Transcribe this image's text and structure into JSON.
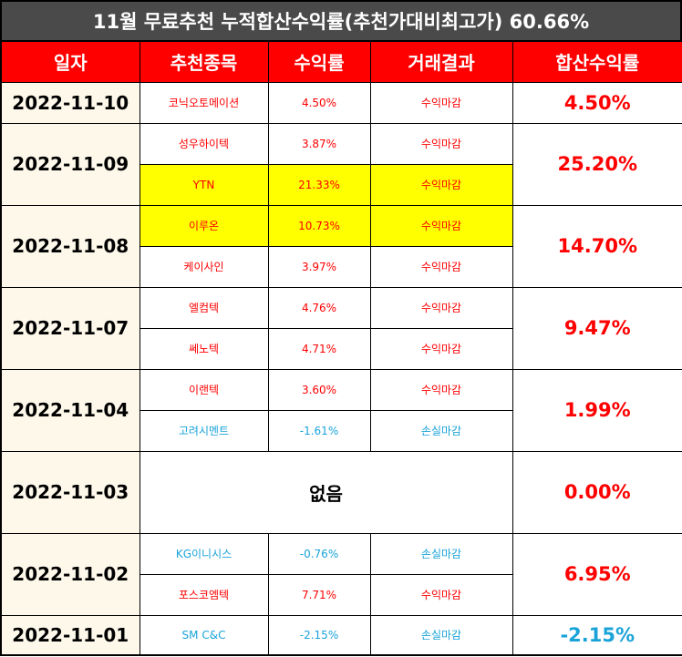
{
  "title": "11월 무료추천 누적합산수익률(추천가대비최고가) 60.66%",
  "headers": [
    "일자",
    "추천종목",
    "수익률",
    "거래결과",
    "합산수익률"
  ],
  "groups": [
    {
      "date": "2022-11-10",
      "total": "4.50%",
      "total_color": "#ff0000",
      "rows": [
        {
          "stock": "코닉오토메이션",
          "rate": "4.50%",
          "result": "수익마감",
          "color": "#ff0000",
          "highlight": false
        }
      ]
    },
    {
      "date": "2022-11-09",
      "total": "25.20%",
      "total_color": "#ff0000",
      "rows": [
        {
          "stock": "성우하이텍",
          "rate": "3.87%",
          "result": "수익마감",
          "color": "#ff0000",
          "highlight": false
        },
        {
          "stock": "YTN",
          "rate": "21.33%",
          "result": "수익마감",
          "color": "#ff0000",
          "highlight": true
        }
      ]
    },
    {
      "date": "2022-11-08",
      "total": "14.70%",
      "total_color": "#ff0000",
      "rows": [
        {
          "stock": "이루온",
          "rate": "10.73%",
          "result": "수익마감",
          "color": "#ff0000",
          "highlight": true
        },
        {
          "stock": "케이사인",
          "rate": "3.97%",
          "result": "수익마감",
          "color": "#ff0000",
          "highlight": false
        }
      ]
    },
    {
      "date": "2022-11-07",
      "total": "9.47%",
      "total_color": "#ff0000",
      "rows": [
        {
          "stock": "엘컴텍",
          "rate": "4.76%",
          "result": "수익마감",
          "color": "#ff0000",
          "highlight": false
        },
        {
          "stock": "쎄노텍",
          "rate": "4.71%",
          "result": "수익마감",
          "color": "#ff0000",
          "highlight": false
        }
      ]
    },
    {
      "date": "2022-11-04",
      "total": "1.99%",
      "total_color": "#ff0000",
      "rows": [
        {
          "stock": "이랜텍",
          "rate": "3.60%",
          "result": "수익마감",
          "color": "#ff0000",
          "highlight": false
        },
        {
          "stock": "고려시멘트",
          "rate": "-1.61%",
          "result": "손실마감",
          "color": "#1aa3d9",
          "highlight": false
        }
      ]
    },
    {
      "date": "2022-11-03",
      "total": "0.00%",
      "total_color": "#ff0000",
      "none_label": "없음",
      "rows": []
    },
    {
      "date": "2022-11-02",
      "total": "6.95%",
      "total_color": "#ff0000",
      "rows": [
        {
          "stock": "KG이니시스",
          "rate": "-0.76%",
          "result": "손실마감",
          "color": "#1aa3d9",
          "highlight": false
        },
        {
          "stock": "포스코엠텍",
          "rate": "7.71%",
          "result": "수익마감",
          "color": "#ff0000",
          "highlight": false
        }
      ]
    },
    {
      "date": "2022-11-01",
      "total": "-2.15%",
      "total_color": "#1aa3d9",
      "rows": [
        {
          "stock": "SM C&C",
          "rate": "-2.15%",
          "result": "손실마감",
          "color": "#1aa3d9",
          "highlight": false
        }
      ]
    }
  ]
}
